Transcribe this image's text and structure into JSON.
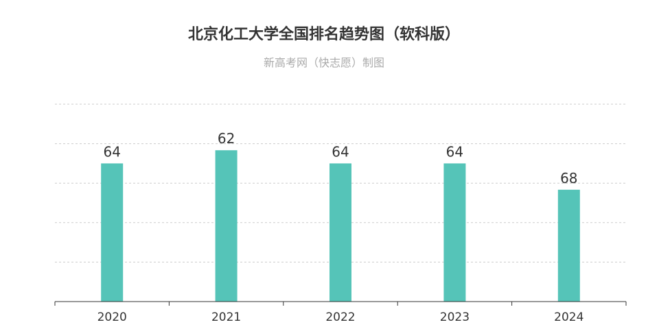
{
  "chart_data": {
    "type": "bar",
    "title": "北京化工大学全国排名趋势图（软科版）",
    "subtitle": "新高考网（快志愿）制图",
    "categories": [
      "2020",
      "2021",
      "2022",
      "2023",
      "2024"
    ],
    "values": [
      64,
      62,
      64,
      64,
      68
    ],
    "reversed_y": true,
    "ylim": [
      85,
      55
    ],
    "grid": true,
    "bar_color": "#55c4b8"
  }
}
